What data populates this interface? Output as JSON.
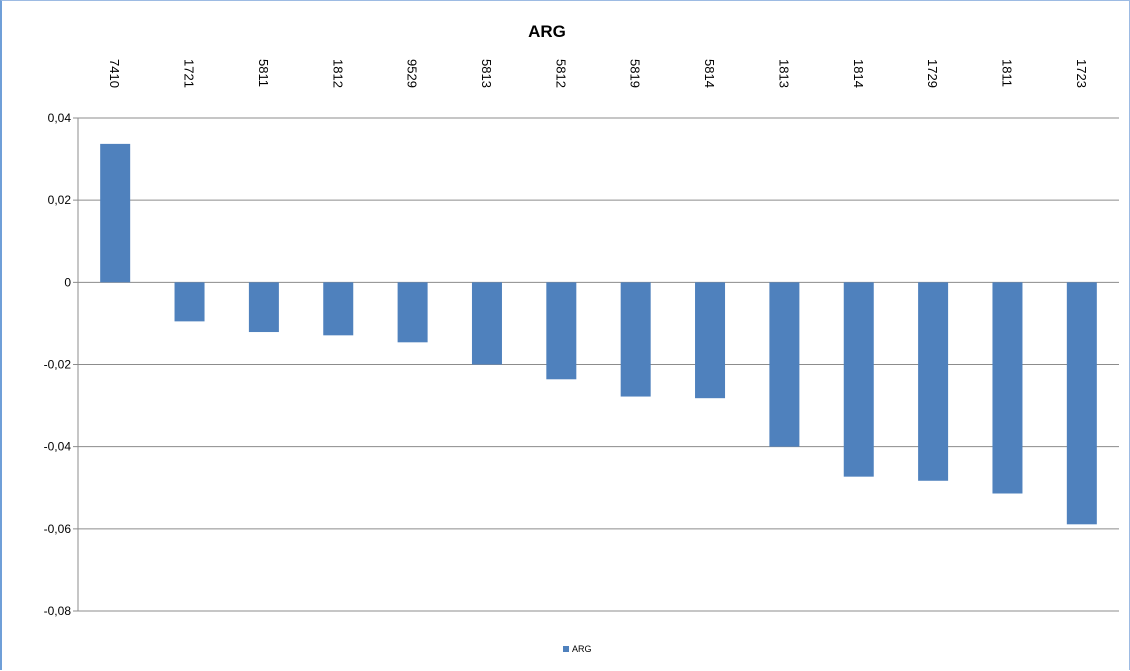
{
  "chart_data": {
    "type": "bar",
    "title": "ARG",
    "categories": [
      "7410",
      "1721",
      "5811",
      "1812",
      "9529",
      "5813",
      "5812",
      "5819",
      "5814",
      "1813",
      "1814",
      "1729",
      "1811",
      "1723"
    ],
    "series": [
      {
        "name": "ARG",
        "values": [
          0.0337,
          -0.0095,
          -0.0121,
          -0.0129,
          -0.0146,
          -0.02,
          -0.0236,
          -0.0278,
          -0.0282,
          -0.04,
          -0.0473,
          -0.0483,
          -0.0514,
          -0.0589
        ]
      }
    ],
    "ylim": [
      -0.08,
      0.04
    ],
    "yticks": [
      0.04,
      0.02,
      0,
      -0.02,
      -0.04,
      -0.06,
      -0.08
    ],
    "ytick_labels": [
      "0,04",
      "0,02",
      "0",
      "-0,02",
      "-0,04",
      "-0,06",
      "-0,08"
    ],
    "grid": true,
    "legend": "bottom",
    "bar_color": "#4f81bd",
    "grid_color": "#8c8c8c"
  }
}
